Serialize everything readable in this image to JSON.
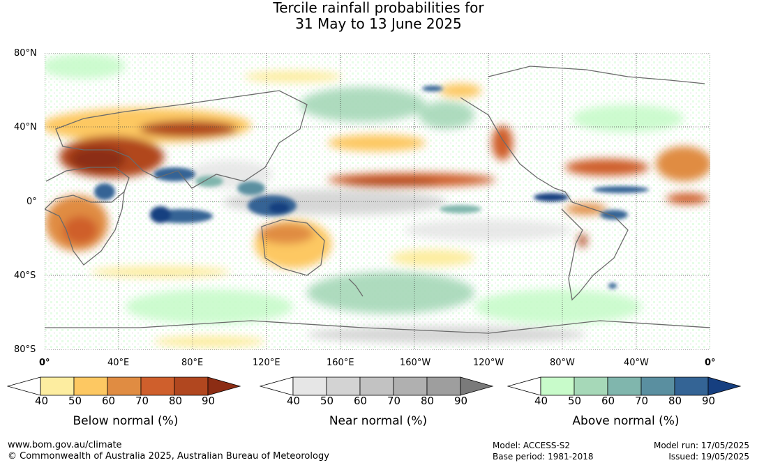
{
  "title_line1": "Tercile rainfall probabilities for",
  "title_line2": "31 May to 13 June 2025",
  "lat_labels": [
    "80°N",
    "40°N",
    "0°",
    "40°S",
    "80°S"
  ],
  "lon_labels": [
    "0°",
    "40°E",
    "80°E",
    "120°E",
    "160°E",
    "160°W",
    "120°W",
    "80°W",
    "40°W",
    "0°"
  ],
  "legends": [
    {
      "title": "Below normal (%)",
      "ticks": [
        "40",
        "50",
        "60",
        "70",
        "80",
        "90"
      ],
      "colors": [
        "#ffffff",
        "#fdeda0",
        "#fdc862",
        "#e08c42",
        "#cf5f2c",
        "#b1471f",
        "#8c2d14"
      ]
    },
    {
      "title": "Near normal (%)",
      "ticks": [
        "40",
        "50",
        "60",
        "70",
        "80",
        "90"
      ],
      "colors": [
        "#ffffff",
        "#e6e6e6",
        "#d3d3d3",
        "#c2c2c2",
        "#b0b0b0",
        "#9e9e9e",
        "#7a7a7a"
      ]
    },
    {
      "title": "Above normal (%)",
      "ticks": [
        "40",
        "50",
        "60",
        "70",
        "80",
        "90"
      ],
      "colors": [
        "#ffffff",
        "#c8fbca",
        "#a6d8b8",
        "#80b6ad",
        "#5a8fa0",
        "#346495",
        "#163f80"
      ]
    }
  ],
  "footer": {
    "website": "www.bom.gov.au/climate",
    "copyright": "© Commonwealth of Australia 2025, Australian Bureau of Meteorology",
    "model": "Model: ACCESS-S2",
    "base_period": "Base period: 1981-2018",
    "model_run": "Model run: 17/05/2025",
    "issued": "Issued: 19/05/2025"
  }
}
